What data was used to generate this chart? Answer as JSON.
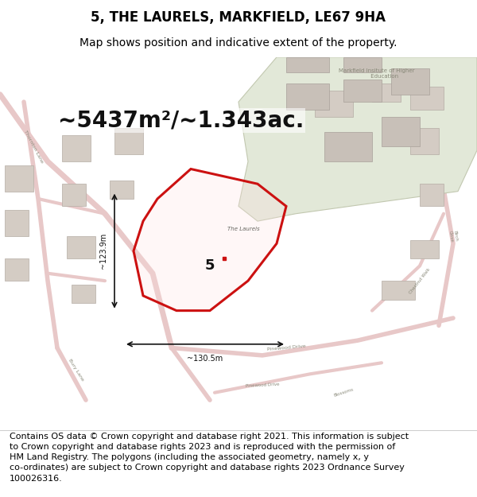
{
  "title": "5, THE LAURELS, MARKFIELD, LE67 9HA",
  "subtitle": "Map shows position and indicative extent of the property.",
  "area_text": "~5437m²/~1.343ac.",
  "dim_h": "~123.9m",
  "dim_w": "~130.5m",
  "property_number": "5",
  "footer": "Contains OS data © Crown copyright and database right 2021. This information is subject\nto Crown copyright and database rights 2023 and is reproduced with the permission of\nHM Land Registry. The polygons (including the associated geometry, namely x, y\nco-ordinates) are subject to Crown copyright and database rights 2023 Ordnance Survey\n100026316.",
  "background_color": "#ffffff",
  "map_bg": "#f5f0eb",
  "road_color": "#e8c8c8",
  "building_color": "#d4ccc4",
  "building_outline": "#b4aca4",
  "green_area_color": "#e2e8d8",
  "green_outline": "#c2c8b0",
  "red_outline": "#cc1111",
  "dim_line_color": "#111111",
  "title_fontsize": 12,
  "subtitle_fontsize": 10,
  "area_fontsize": 20,
  "footer_fontsize": 8,
  "institute_label": "Markfield Insitute of Higher\n         Education",
  "laurels_label": "The Laurels",
  "pinewood_label": "Pinewood Drive",
  "birch_label": "Birch\nClose",
  "chestnut_label": "Chestnut Walk",
  "thornton_label": "Thornton Lane",
  "bury_label": "Bury Lane"
}
